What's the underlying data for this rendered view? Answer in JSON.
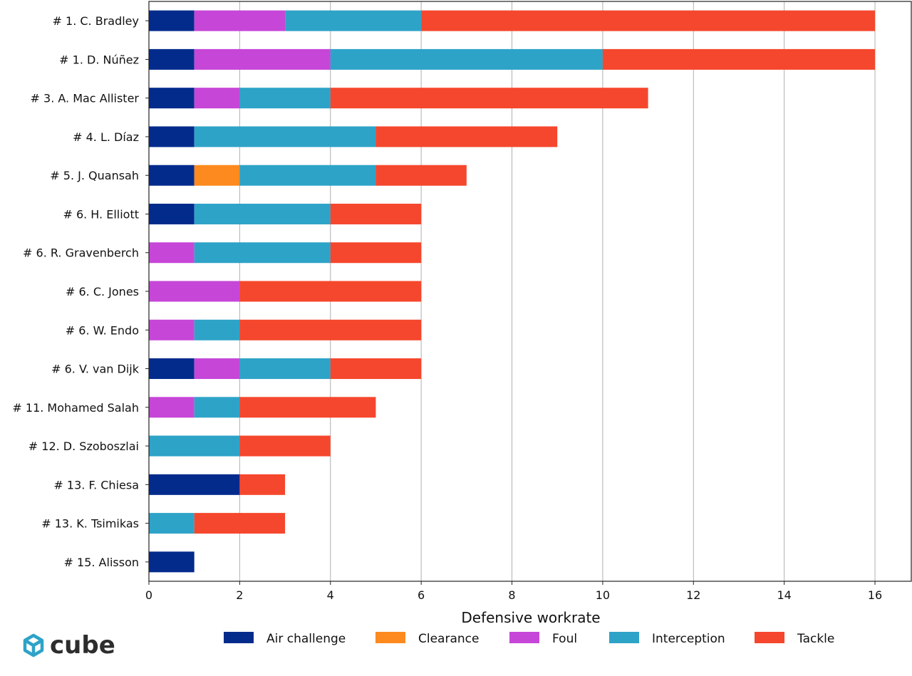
{
  "chart_data": {
    "type": "bar",
    "orientation": "horizontal",
    "stacked": true,
    "xlabel": "Defensive workrate",
    "xlim": [
      0,
      16.8
    ],
    "xticks": [
      0,
      2,
      4,
      6,
      8,
      10,
      12,
      14,
      16
    ],
    "grid": "vertical",
    "legend_position": "bottom",
    "categories": [
      "# 1.  C. Bradley",
      "# 1.  D. Núñez",
      "# 3.  A. Mac Allister",
      "# 4.  L. Díaz",
      "# 5.  J. Quansah",
      "# 6.  H. Elliott",
      "# 6.  R. Gravenberch",
      "# 6.  C. Jones",
      "# 6.  W. Endo",
      "# 6.  V. van Dijk",
      "# 11.  Mohamed Salah",
      "# 12.  D. Szoboszlai",
      "# 13.  F. Chiesa",
      "# 13.  K. Tsimikas",
      "# 15.  Alisson"
    ],
    "series": [
      {
        "name": "Air challenge",
        "color": "#022b8c",
        "values": [
          1,
          1,
          1,
          1,
          1,
          1,
          0,
          0,
          0,
          1,
          0,
          0,
          2,
          0,
          1
        ]
      },
      {
        "name": "Clearance",
        "color": "#fd8a1e",
        "values": [
          0,
          0,
          0,
          0,
          1,
          0,
          0,
          0,
          0,
          0,
          0,
          0,
          0,
          0,
          0
        ]
      },
      {
        "name": "Foul",
        "color": "#c646d8",
        "values": [
          2,
          3,
          1,
          0,
          0,
          0,
          1,
          2,
          1,
          1,
          1,
          0,
          0,
          0,
          0
        ]
      },
      {
        "name": "Interception",
        "color": "#2ea3c8",
        "values": [
          3,
          6,
          2,
          4,
          3,
          3,
          3,
          0,
          1,
          2,
          1,
          2,
          0,
          1,
          0
        ]
      },
      {
        "name": "Tackle",
        "color": "#f5472d",
        "values": [
          10,
          6,
          7,
          4,
          2,
          2,
          2,
          4,
          4,
          2,
          3,
          2,
          1,
          2,
          0
        ]
      }
    ]
  },
  "brand": {
    "name": "cube",
    "logo_color": "#2ea3c8"
  }
}
